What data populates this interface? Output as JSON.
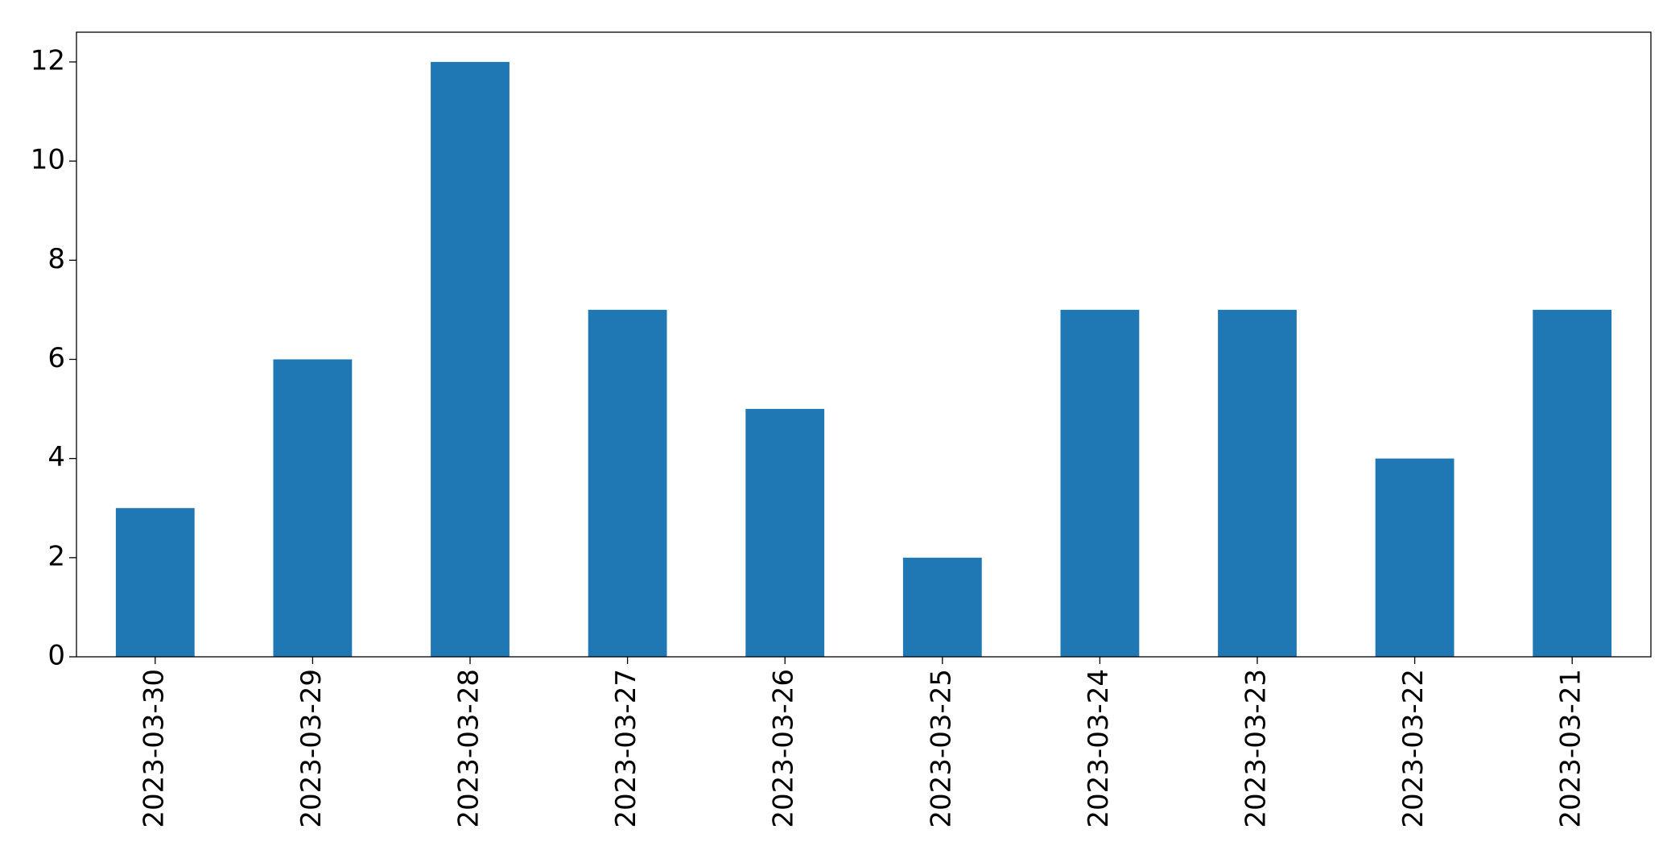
{
  "chart_data": {
    "type": "bar",
    "categories": [
      "2023-03-30",
      "2023-03-29",
      "2023-03-28",
      "2023-03-27",
      "2023-03-26",
      "2023-03-25",
      "2023-03-24",
      "2023-03-23",
      "2023-03-22",
      "2023-03-21"
    ],
    "values": [
      3,
      6,
      12,
      7,
      5,
      2,
      7,
      7,
      4,
      7
    ],
    "color": "#1f77b4",
    "ylim": [
      0,
      12.6
    ],
    "yticks": [
      0,
      2,
      4,
      6,
      8,
      10,
      12
    ],
    "grid": false
  }
}
